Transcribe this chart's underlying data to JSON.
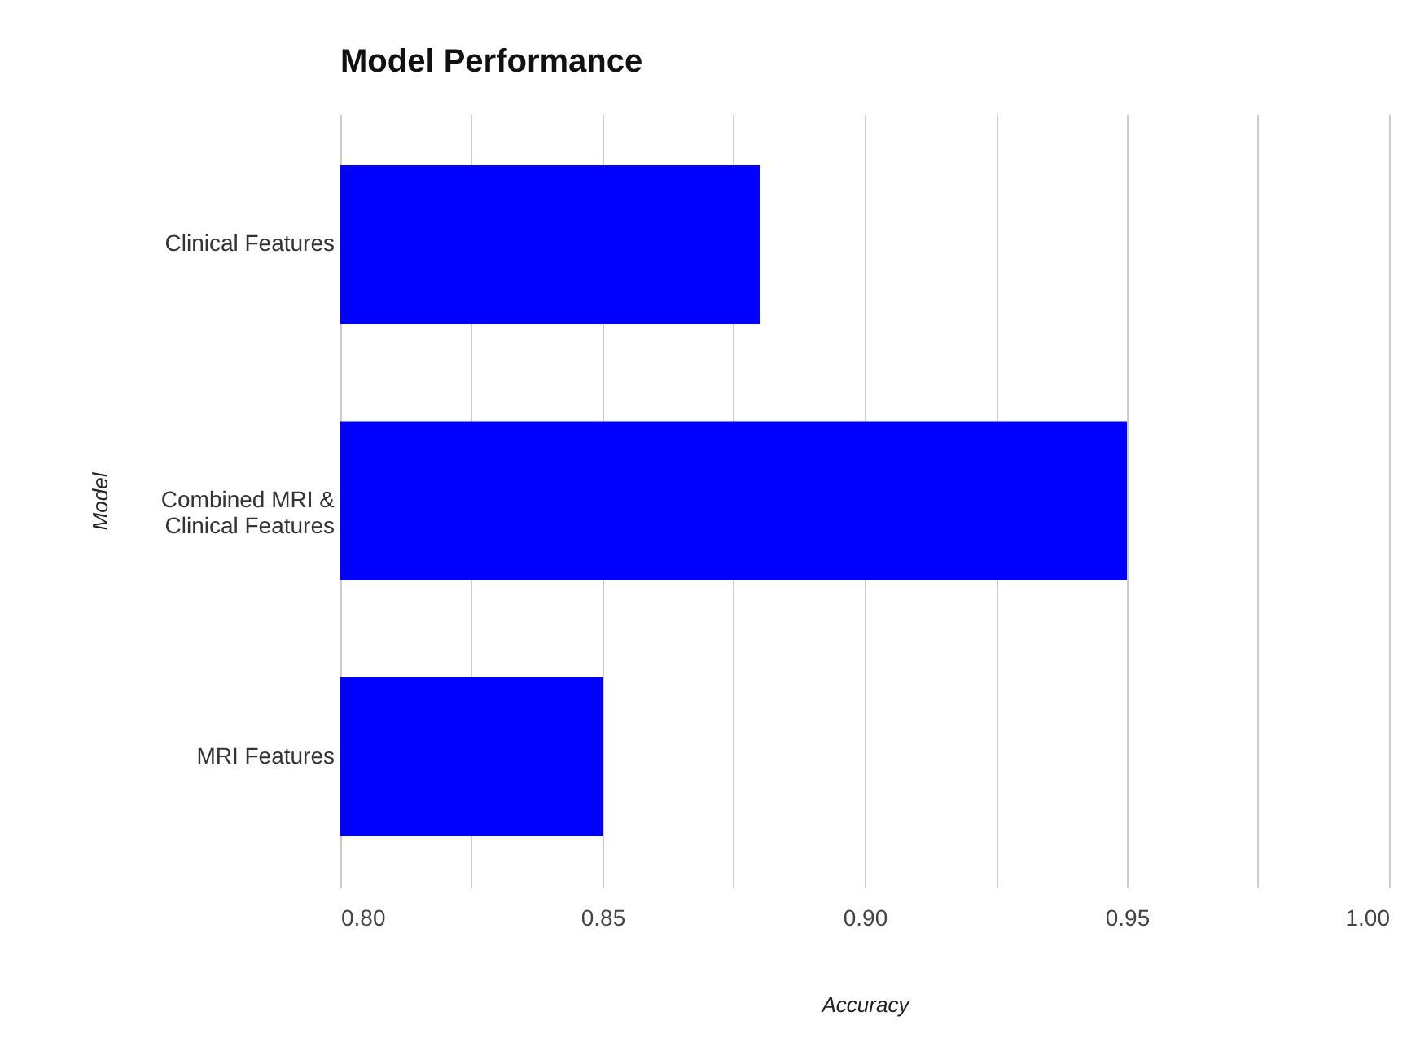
{
  "chart_data": {
    "type": "bar",
    "orientation": "horizontal",
    "title": "Model Performance",
    "xlabel": "Accuracy",
    "ylabel": "Model",
    "categories": [
      "Clinical Features",
      "Combined MRI & Clinical Features",
      "MRI Features"
    ],
    "values": [
      0.88,
      0.95,
      0.85
    ],
    "color": "#0000ff",
    "xlim": [
      0.8,
      1.0
    ],
    "xticks": [
      {
        "value": 0.8,
        "label": "0.80"
      },
      {
        "value": 0.825,
        "label": null
      },
      {
        "value": 0.85,
        "label": "0.85"
      },
      {
        "value": 0.875,
        "label": null
      },
      {
        "value": 0.9,
        "label": "0.90"
      },
      {
        "value": 0.925,
        "label": null
      },
      {
        "value": 0.95,
        "label": "0.95"
      },
      {
        "value": 0.975,
        "label": null
      },
      {
        "value": 1.0,
        "label": "1.00"
      }
    ],
    "grid": "x"
  }
}
